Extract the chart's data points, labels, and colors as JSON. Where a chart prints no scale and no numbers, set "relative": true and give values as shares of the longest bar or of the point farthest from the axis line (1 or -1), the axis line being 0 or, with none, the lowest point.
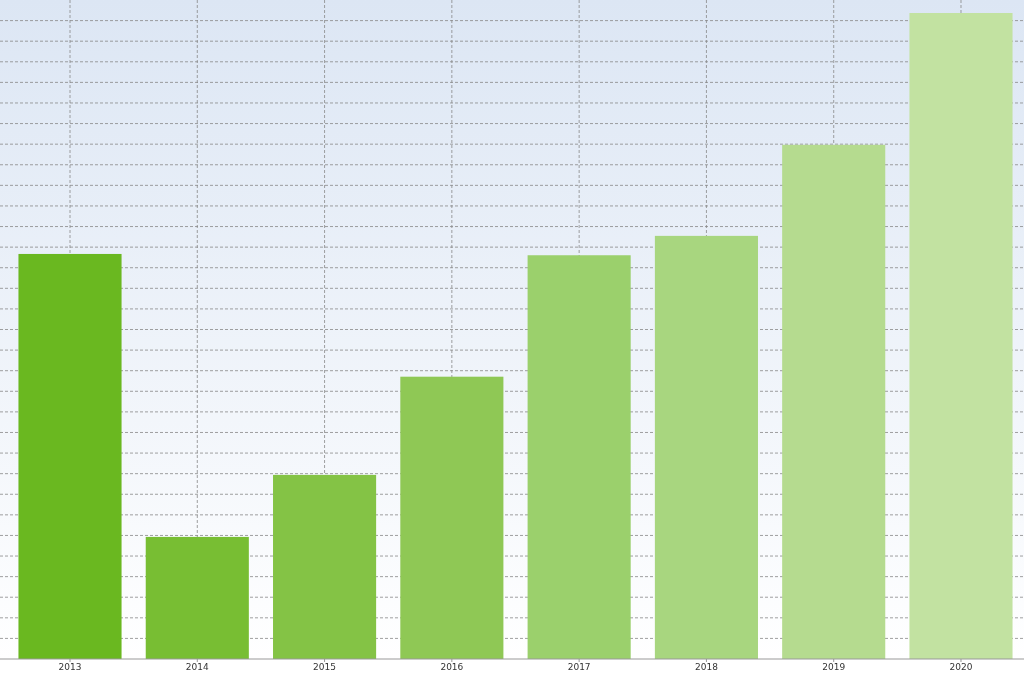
{
  "chart_data": {
    "type": "bar",
    "relative": true,
    "grid": true,
    "categories": [
      "2013",
      "2014",
      "2015",
      "2016",
      "2017",
      "2018",
      "2019",
      "2020"
    ],
    "values": [
      0.627,
      0.189,
      0.285,
      0.437,
      0.625,
      0.655,
      0.796,
      1
    ],
    "colors": [
      "#6ab820",
      "#78be33",
      "#84c345",
      "#8fc855",
      "#9bd06c",
      "#a8d67f",
      "#b5db8f",
      "#c2e2a1"
    ]
  }
}
